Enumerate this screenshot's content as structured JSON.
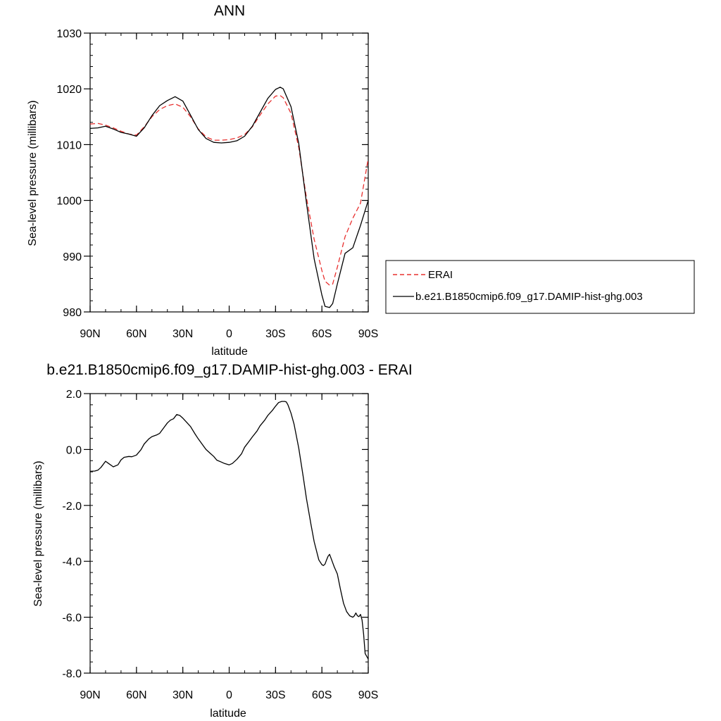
{
  "chart_data": [
    {
      "type": "line",
      "title": "ANN",
      "xlabel": "latitude",
      "ylabel": "Sea-level pressure (millibars)",
      "xlim": [
        90,
        -90
      ],
      "ylim": [
        980,
        1030
      ],
      "xticks": [
        90,
        60,
        30,
        0,
        -30,
        -60,
        -90
      ],
      "xtick_labels": [
        "90N",
        "60N",
        "30N",
        "0",
        "30S",
        "60S",
        "90S"
      ],
      "yticks": [
        980,
        990,
        1000,
        1010,
        1020,
        1030
      ],
      "ytick_labels": [
        "980",
        "990",
        "1000",
        "1010",
        "1020",
        "1030"
      ],
      "legend_position": "right",
      "series": [
        {
          "name": "ERAI",
          "color": "#e8302f",
          "dash": "dashed",
          "x": [
            90,
            85,
            80,
            75,
            70,
            65,
            60,
            55,
            50,
            45,
            40,
            35,
            30,
            25,
            20,
            15,
            10,
            5,
            0,
            -5,
            -10,
            -15,
            -20,
            -25,
            -30,
            -33,
            -35,
            -40,
            -45,
            -50,
            -55,
            -60,
            -62,
            -65,
            -67,
            -70,
            -75,
            -80,
            -85,
            -90
          ],
          "y": [
            1013.7,
            1013.8,
            1013.5,
            1013.0,
            1012.4,
            1011.9,
            1011.7,
            1013.2,
            1015.0,
            1016.3,
            1017.0,
            1017.3,
            1016.7,
            1015.0,
            1012.8,
            1011.4,
            1010.8,
            1010.8,
            1010.9,
            1011.2,
            1011.8,
            1013.2,
            1015.3,
            1017.3,
            1018.7,
            1018.8,
            1018.4,
            1015.6,
            1009.5,
            1000.5,
            993.0,
            987.4,
            985.5,
            984.8,
            985.0,
            988.0,
            993.5,
            996.8,
            999.5,
            1007.5
          ]
        },
        {
          "name": "b.e21.B1850cmip6.f09_g17.DAMIP-hist-ghg.003",
          "color": "#000000",
          "dash": "solid",
          "x": [
            90,
            85,
            80,
            75,
            70,
            65,
            60,
            55,
            50,
            45,
            40,
            35,
            30,
            25,
            20,
            15,
            10,
            5,
            0,
            -5,
            -10,
            -15,
            -20,
            -25,
            -30,
            -33,
            -35,
            -40,
            -45,
            -50,
            -55,
            -60,
            -62,
            -65,
            -67,
            -70,
            -75,
            -80,
            -85,
            -90
          ],
          "y": [
            1012.9,
            1013.0,
            1013.3,
            1012.8,
            1012.2,
            1011.9,
            1011.5,
            1013.0,
            1015.2,
            1017.0,
            1017.9,
            1018.6,
            1017.8,
            1015.3,
            1012.7,
            1011.1,
            1010.4,
            1010.3,
            1010.4,
            1010.7,
            1011.5,
            1013.3,
            1015.8,
            1018.3,
            1019.9,
            1020.3,
            1020.0,
            1016.8,
            1010.2,
            999.6,
            989.5,
            983.0,
            981.0,
            980.8,
            981.5,
            985.0,
            990.5,
            991.5,
            995.5,
            1000.0
          ]
        }
      ]
    },
    {
      "type": "line",
      "title": "b.e21.B1850cmip6.f09_g17.DAMIP-hist-ghg.003 - ERAI",
      "xlabel": "latitude",
      "ylabel": "Sea-level pressure (millibars)",
      "xlim": [
        90,
        -90
      ],
      "ylim": [
        -8,
        2
      ],
      "xticks": [
        90,
        60,
        30,
        0,
        -30,
        -60,
        -90
      ],
      "xtick_labels": [
        "90N",
        "60N",
        "30N",
        "0",
        "30S",
        "60S",
        "90S"
      ],
      "yticks": [
        -8,
        -6,
        -4,
        -2,
        0,
        2
      ],
      "ytick_labels": [
        "-8.0",
        "-6.0",
        "-4.0",
        "-2.0",
        "0.0",
        "2.0"
      ],
      "series": [
        {
          "color": "#000000",
          "dash": "solid",
          "x": [
            90,
            87,
            85,
            83,
            80,
            78,
            75,
            72,
            70,
            68,
            65,
            63,
            60,
            57,
            55,
            52,
            50,
            47,
            45,
            42,
            40,
            38,
            36,
            34,
            32,
            30,
            28,
            25,
            22,
            20,
            17,
            15,
            12,
            10,
            8,
            5,
            3,
            0,
            -2,
            -5,
            -8,
            -10,
            -13,
            -15,
            -18,
            -20,
            -23,
            -25,
            -28,
            -30,
            -32,
            -34,
            -36,
            -37,
            -38,
            -40,
            -42,
            -45,
            -48,
            -50,
            -53,
            -55,
            -58,
            -60,
            -61,
            -62,
            -63,
            -64,
            -65,
            -66,
            -67,
            -68,
            -70,
            -72,
            -74,
            -76,
            -78,
            -80,
            -81,
            -82,
            -83,
            -84,
            -85,
            -86,
            -87,
            -88,
            -90
          ],
          "y": [
            -0.78,
            -0.77,
            -0.74,
            -0.64,
            -0.42,
            -0.5,
            -0.62,
            -0.55,
            -0.37,
            -0.28,
            -0.25,
            -0.26,
            -0.2,
            0.0,
            0.2,
            0.38,
            0.46,
            0.52,
            0.58,
            0.8,
            0.95,
            1.05,
            1.1,
            1.25,
            1.22,
            1.12,
            1.0,
            0.82,
            0.55,
            0.38,
            0.15,
            0.0,
            -0.15,
            -0.25,
            -0.38,
            -0.45,
            -0.5,
            -0.55,
            -0.5,
            -0.35,
            -0.15,
            0.08,
            0.3,
            0.45,
            0.66,
            0.85,
            1.05,
            1.22,
            1.4,
            1.55,
            1.68,
            1.72,
            1.72,
            1.7,
            1.6,
            1.3,
            0.9,
            0.05,
            -1.0,
            -1.75,
            -2.7,
            -3.3,
            -3.95,
            -4.12,
            -4.15,
            -4.1,
            -3.95,
            -3.82,
            -3.75,
            -3.9,
            -4.05,
            -4.2,
            -4.45,
            -5.0,
            -5.5,
            -5.8,
            -5.95,
            -6.0,
            -5.95,
            -5.85,
            -5.95,
            -5.98,
            -5.9,
            -6.1,
            -6.6,
            -7.3,
            -7.5
          ]
        }
      ]
    }
  ]
}
